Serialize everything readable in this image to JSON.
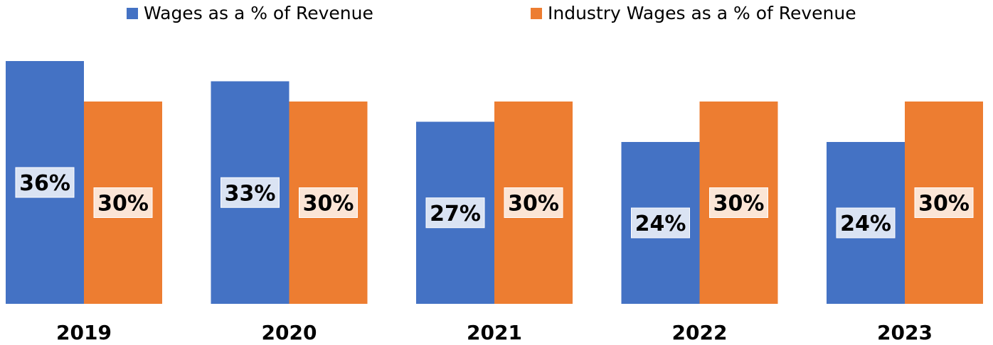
{
  "chart_data": {
    "type": "bar",
    "categories": [
      "2019",
      "2020",
      "2021",
      "2022",
      "2023"
    ],
    "series": [
      {
        "name": "Wages as a % of Revenue",
        "color": "#4472C4",
        "label_bg": "#DAE3F3",
        "values": [
          36,
          33,
          27,
          24,
          24
        ],
        "labels": [
          "36%",
          "33%",
          "27%",
          "24%",
          "24%"
        ]
      },
      {
        "name": "Industry Wages as a % of Revenue",
        "color": "#ED7D31",
        "label_bg": "#FBE5D6",
        "values": [
          30,
          30,
          30,
          30,
          30
        ],
        "labels": [
          "30%",
          "30%",
          "30%",
          "30%",
          "30%"
        ]
      }
    ],
    "title": "",
    "xlabel": "",
    "ylabel": "",
    "ylim": [
      0,
      36
    ],
    "grid": false,
    "legend": "top"
  }
}
